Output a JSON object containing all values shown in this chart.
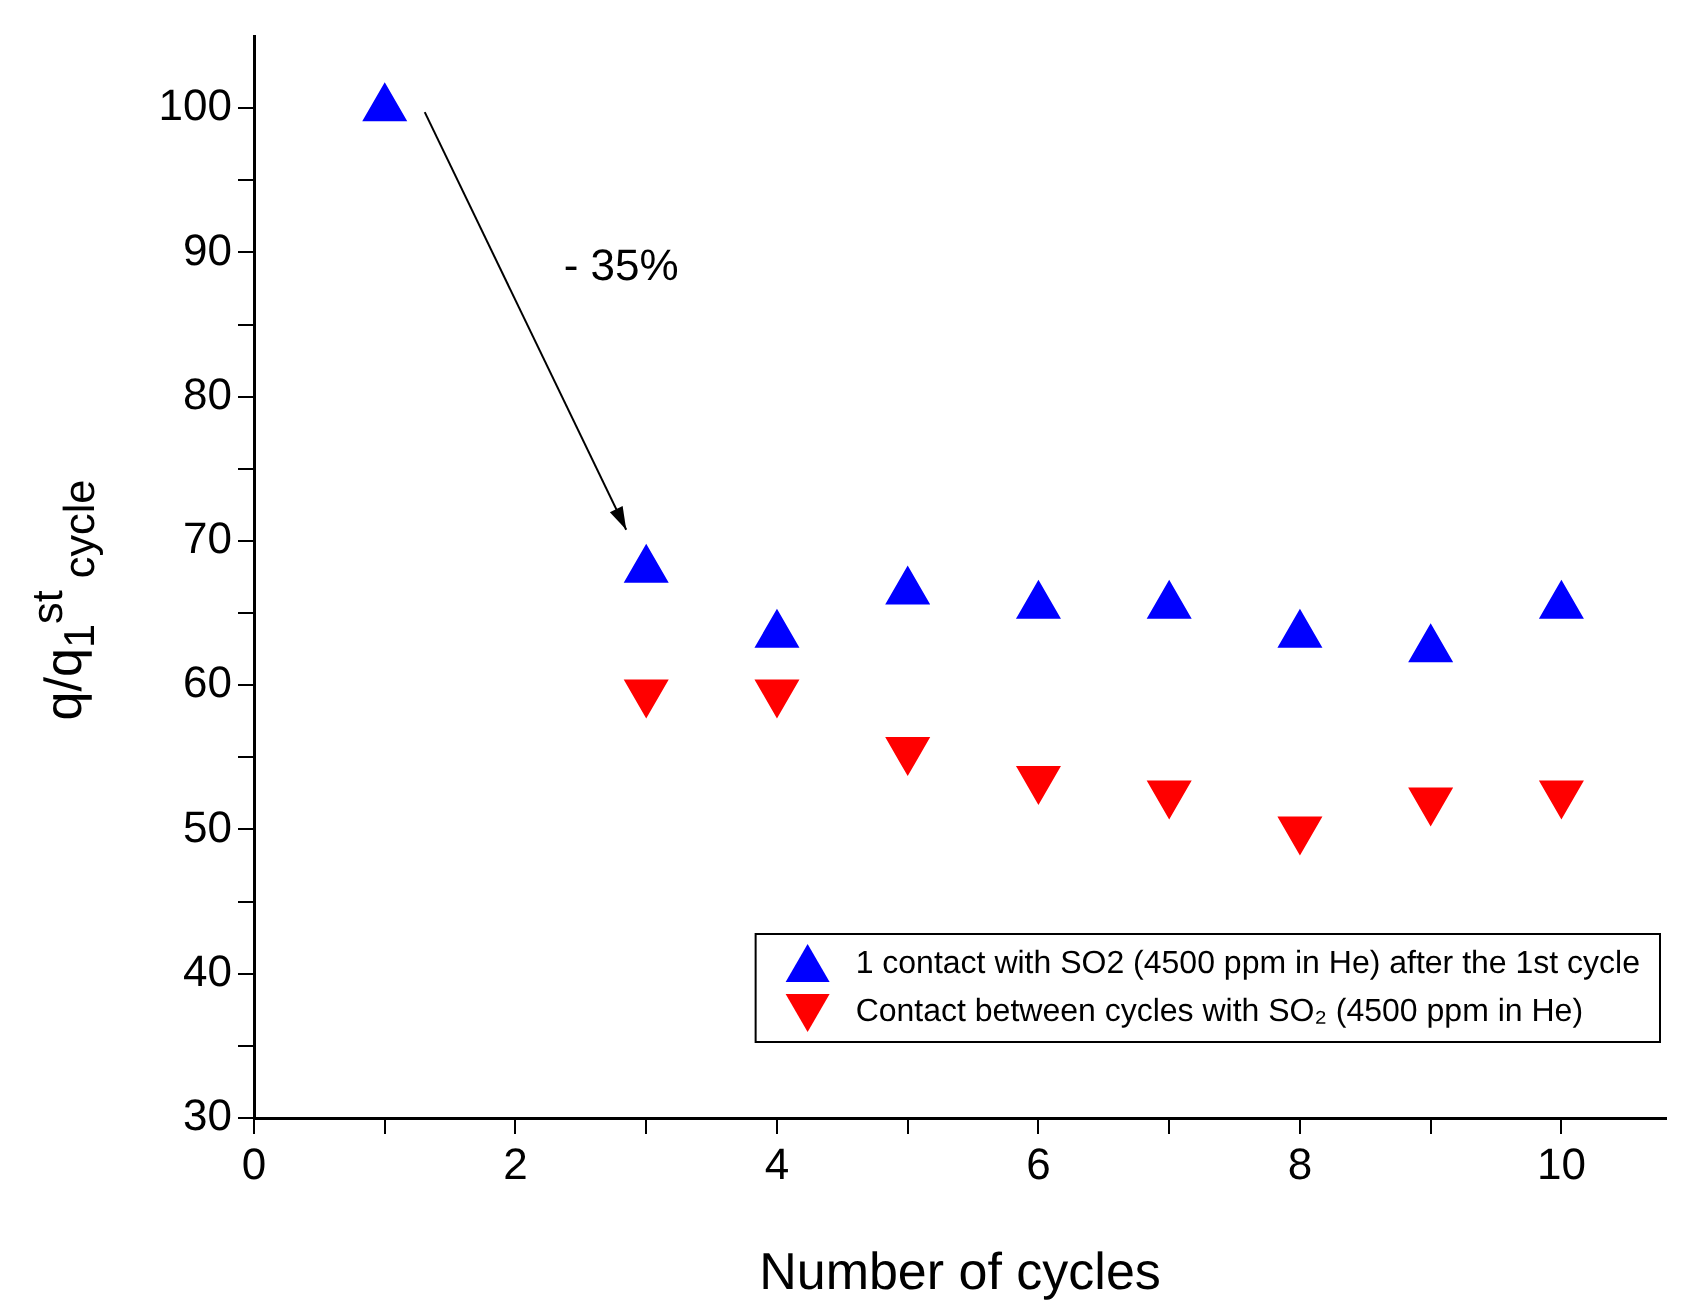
{
  "chart_data": {
    "type": "scatter",
    "xlabel": "Number of cycles",
    "ylabel": "q/q$_{1}$$^{st}$$_{ cycle}$",
    "series": [
      {
        "name": "1 contact with SO2 (4500 ppm in He) after the 1st cycle",
        "color": "#0000ff",
        "marker": "triangle",
        "x": [
          1,
          3,
          4,
          5,
          6,
          7,
          8,
          9,
          10
        ],
        "values": [
          100,
          68,
          63.5,
          66.5,
          65.5,
          65.5,
          63.5,
          62.5,
          65.5
        ]
      },
      {
        "name": "Contact between cycles with SO₂ (4500 ppm in He)",
        "color": "#ff0000",
        "marker": "triangle-down",
        "x": [
          3,
          4,
          5,
          6,
          7,
          8,
          9,
          10
        ],
        "values": [
          59.5,
          59.5,
          55.5,
          53.5,
          52.5,
          50,
          52,
          52.5
        ]
      }
    ],
    "annotations": [
      "- 35%"
    ],
    "xlim": [
      0,
      10.8
    ],
    "ylim": [
      30,
      105
    ],
    "xticks": [
      0,
      {
        "value": 1,
        "label": null
      },
      2,
      {
        "value": 3,
        "label": null
      },
      4,
      {
        "value": 5,
        "label": null
      },
      6,
      {
        "value": 7,
        "label": null
      },
      8,
      {
        "value": 9,
        "label": null
      },
      10
    ],
    "yticks": [
      30,
      {
        "value": 35,
        "label": null
      },
      40,
      {
        "value": 45,
        "label": null
      },
      50,
      {
        "value": 55,
        "label": null
      },
      60,
      {
        "value": 65,
        "label": null
      },
      70,
      {
        "value": 75,
        "label": null
      },
      80,
      {
        "value": 85,
        "label": null
      },
      90,
      {
        "value": 95,
        "label": null
      },
      100
    ],
    "grid": false,
    "legend": "bottom right"
  }
}
